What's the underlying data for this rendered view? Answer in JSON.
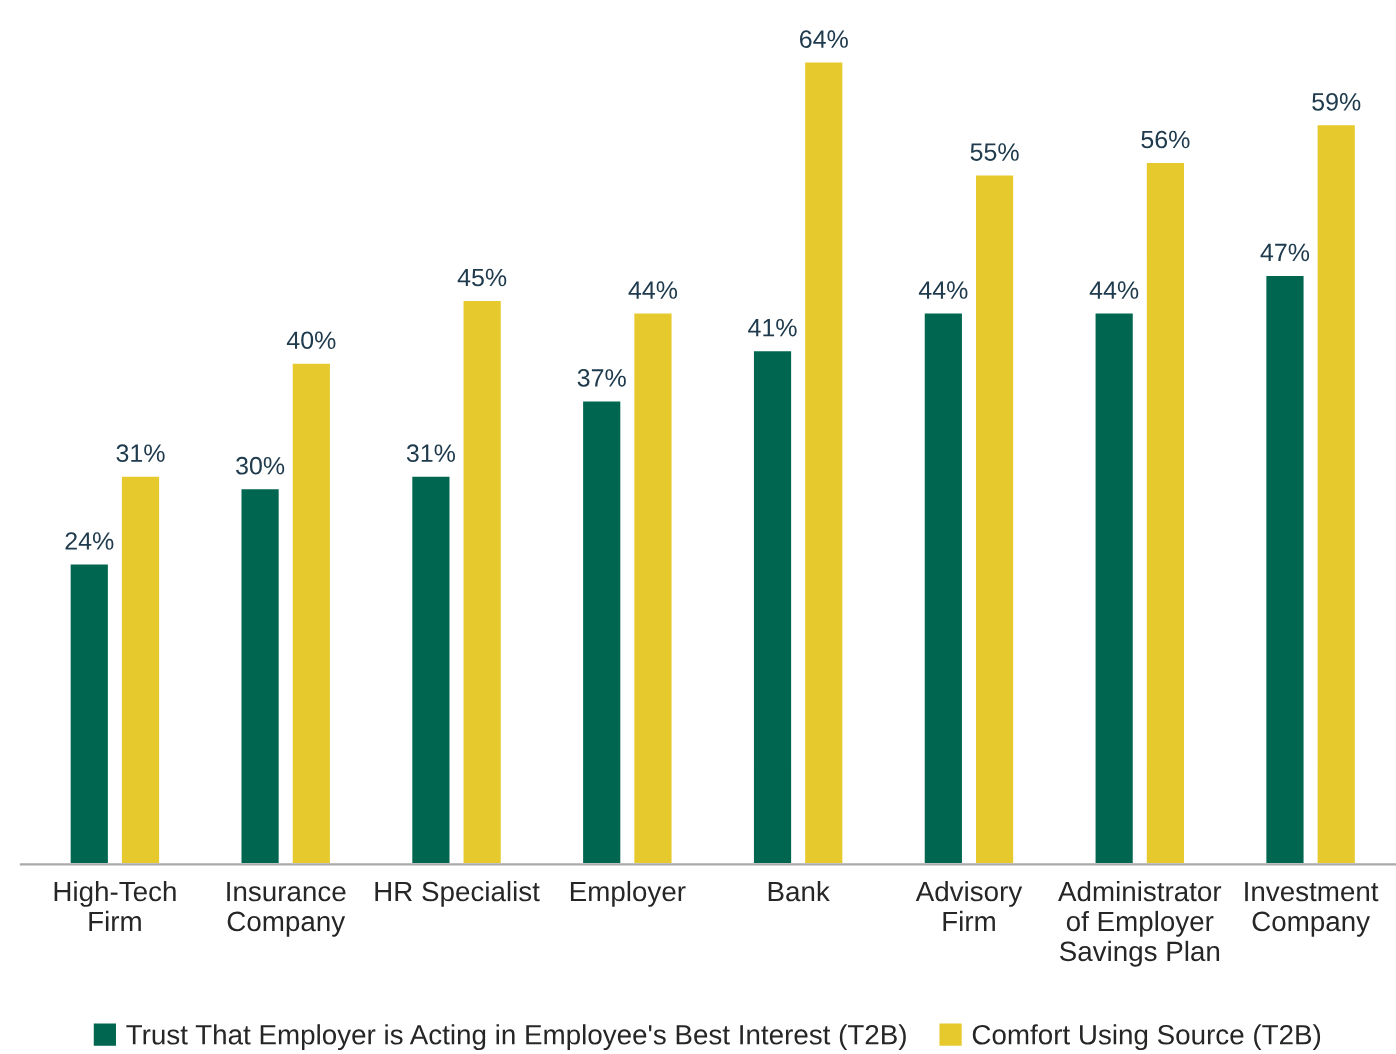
{
  "chart_data": {
    "type": "bar",
    "categories": [
      "High-Tech\nFirm",
      "Insurance\nCompany",
      "HR Specialist",
      "Employer",
      "Bank",
      "Advisory\nFirm",
      "Administrator\nof Employer\nSavings Plan",
      "Investment\nCompany"
    ],
    "series": [
      {
        "name": "Trust That Employer is Acting in Employee's Best Interest (T2B)",
        "color": "#00664f",
        "values": [
          24,
          30,
          31,
          37,
          41,
          44,
          44,
          47
        ],
        "value_labels": [
          "24%",
          "30%",
          "31%",
          "37%",
          "41%",
          "44%",
          "44%",
          "47%"
        ]
      },
      {
        "name": "Comfort Using Source (T2B)",
        "color": "#e6c92c",
        "values": [
          31,
          40,
          45,
          44,
          64,
          55,
          56,
          59
        ],
        "value_labels": [
          "31%",
          "40%",
          "45%",
          "44%",
          "64%",
          "55%",
          "56%",
          "59%"
        ]
      }
    ],
    "tick_labels": "x",
    "grid": false,
    "legend": "bottom"
  }
}
